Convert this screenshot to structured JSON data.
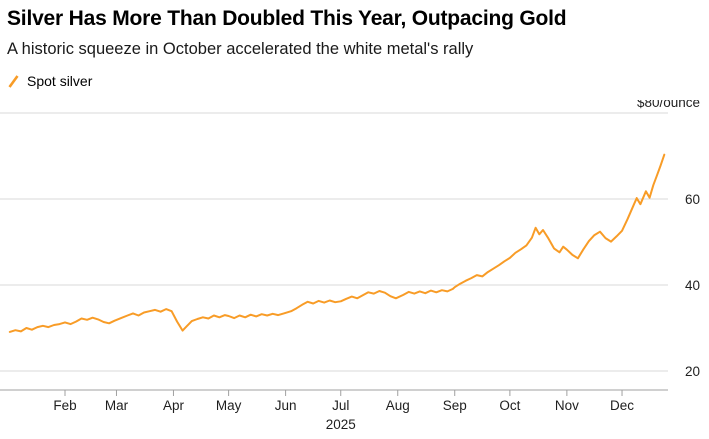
{
  "header": {
    "title": "Silver Has More Than Doubled This Year, Outpacing Gold",
    "subtitle": "A historic squeeze in October accelerated the white metal's rally",
    "legend": {
      "label": "Spot silver",
      "color": "#F89C27"
    }
  },
  "colors": {
    "line": "#F89C27",
    "grid": "#d9d9d9",
    "axis": "#a0a0a0",
    "text": "#1f1f1f"
  },
  "chart_data": {
    "type": "line",
    "title": "Silver Has More Than Doubled This Year, Outpacing Gold",
    "subtitle": "A historic squeeze in October accelerated the white metal's rally",
    "unit": "$/ounce",
    "legend_position": "top-left",
    "grid": "horizontal",
    "x_axis": {
      "year_label": "2025",
      "range_days": [
        0,
        365
      ],
      "ticks": [
        {
          "label": "Feb",
          "day": 31
        },
        {
          "label": "Mar",
          "day": 59
        },
        {
          "label": "Apr",
          "day": 90
        },
        {
          "label": "May",
          "day": 120
        },
        {
          "label": "Jun",
          "day": 151
        },
        {
          "label": "Jul",
          "day": 181
        },
        {
          "label": "Aug",
          "day": 212
        },
        {
          "label": "Sep",
          "day": 243
        },
        {
          "label": "Oct",
          "day": 273
        },
        {
          "label": "Nov",
          "day": 304
        },
        {
          "label": "Dec",
          "day": 334
        }
      ]
    },
    "y_axis": {
      "ticks": [
        20,
        40,
        60,
        80
      ],
      "top_label": "$80/ounce",
      "range": [
        15,
        80
      ]
    },
    "series": [
      {
        "name": "Spot silver",
        "color": "#F89C27",
        "x_days": [
          1,
          4,
          7,
          10,
          13,
          16,
          19,
          22,
          25,
          28,
          31,
          34,
          37,
          40,
          43,
          46,
          49,
          52,
          55,
          58,
          62,
          65,
          68,
          71,
          74,
          77,
          80,
          83,
          86,
          89,
          92,
          95,
          97,
          100,
          103,
          106,
          109,
          112,
          115,
          118,
          120,
          123,
          126,
          129,
          132,
          135,
          138,
          141,
          144,
          147,
          150,
          154,
          157,
          160,
          163,
          166,
          169,
          172,
          175,
          178,
          181,
          184,
          187,
          190,
          193,
          196,
          199,
          202,
          205,
          208,
          211,
          215,
          218,
          221,
          224,
          227,
          230,
          233,
          236,
          239,
          242,
          243,
          246,
          249,
          252,
          255,
          258,
          261,
          264,
          267,
          270,
          273,
          276,
          279,
          282,
          285,
          287,
          289,
          291,
          294,
          297,
          300,
          302,
          304,
          307,
          310,
          313,
          316,
          319,
          322,
          325,
          328,
          331,
          334,
          337,
          340,
          342,
          344,
          347,
          349,
          351,
          353,
          355,
          357
        ],
        "values": [
          29.1,
          29.5,
          29.2,
          30.0,
          29.6,
          30.2,
          30.5,
          30.2,
          30.7,
          30.9,
          31.3,
          30.9,
          31.5,
          32.2,
          31.9,
          32.4,
          32.0,
          31.4,
          31.1,
          31.7,
          32.4,
          32.9,
          33.4,
          32.9,
          33.6,
          33.9,
          34.2,
          33.8,
          34.4,
          33.9,
          31.5,
          29.4,
          30.3,
          31.6,
          32.1,
          32.5,
          32.2,
          32.9,
          32.5,
          33.0,
          32.8,
          32.3,
          32.9,
          32.5,
          33.1,
          32.7,
          33.2,
          32.9,
          33.3,
          33.0,
          33.4,
          33.9,
          34.6,
          35.4,
          36.1,
          35.7,
          36.3,
          35.9,
          36.4,
          36.0,
          36.2,
          36.8,
          37.3,
          36.9,
          37.6,
          38.3,
          38.0,
          38.6,
          38.2,
          37.4,
          36.9,
          37.7,
          38.4,
          38.0,
          38.5,
          38.1,
          38.7,
          38.3,
          38.8,
          38.5,
          39.1,
          39.5,
          40.3,
          41.0,
          41.6,
          42.3,
          42.0,
          43.0,
          43.8,
          44.6,
          45.5,
          46.3,
          47.5,
          48.3,
          49.2,
          51.0,
          53.3,
          51.8,
          52.8,
          50.8,
          48.5,
          47.6,
          48.9,
          48.2,
          47.0,
          46.2,
          48.3,
          50.2,
          51.6,
          52.4,
          50.9,
          50.1,
          51.3,
          52.6,
          55.3,
          58.3,
          60.2,
          58.8,
          61.8,
          60.3,
          63.2,
          65.5,
          67.8,
          70.3
        ]
      }
    ]
  }
}
